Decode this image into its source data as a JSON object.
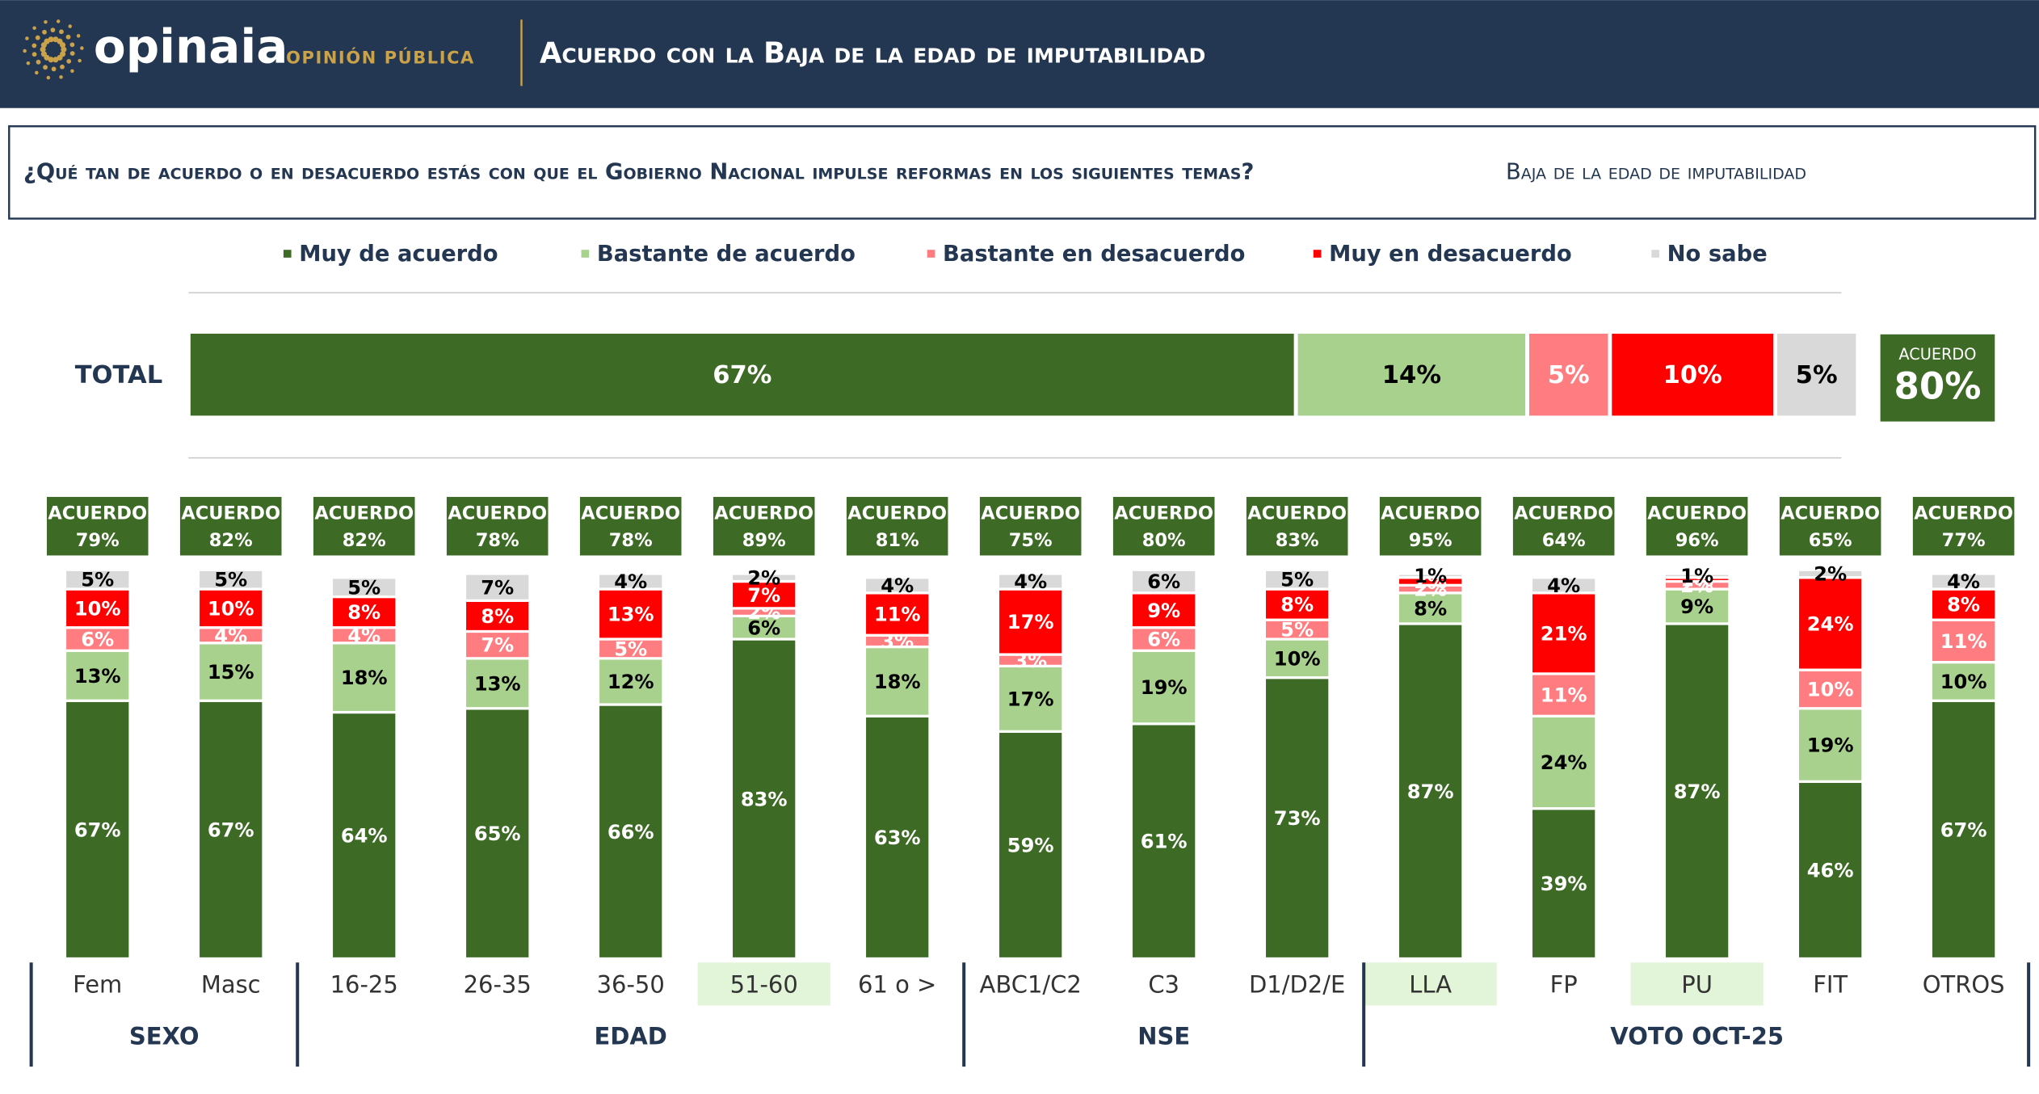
{
  "header": {
    "brand": "opinaia",
    "brand_sub": "OPINIÓN PÚBLICA",
    "title": "Acuerdo con la Baja de la edad de imputabilidad"
  },
  "question": {
    "text": "¿Qué tan de acuerdo o en desacuerdo estás con que el Gobierno Nacional impulse reformas en los siguientes temas?",
    "topic": "Baja de la edad de imputabilidad"
  },
  "chart_data": {
    "type": "stacked_bar",
    "categories": [
      "Fem",
      "Masc",
      "16-25",
      "26-35",
      "36-50",
      "51-60",
      "61 o >",
      "ABC1/C2",
      "C3",
      "D1/D2/E",
      "LLA",
      "FP",
      "PU",
      "FIT",
      "OTROS"
    ],
    "groups": [
      {
        "label": "SEXO",
        "size": 2
      },
      {
        "label": "EDAD",
        "size": 5
      },
      {
        "label": "NSE",
        "size": 3
      },
      {
        "label": "VOTO OCT-25",
        "size": 5
      }
    ],
    "ylim": [
      0,
      100
    ],
    "series": [
      {
        "name": "Muy de acuerdo",
        "color": "#3d6a25",
        "values": [
          67,
          67,
          64,
          65,
          66,
          83,
          63,
          59,
          61,
          73,
          87,
          39,
          87,
          46,
          67
        ],
        "value_labels": [
          "67%",
          "67%",
          "64%",
          "65%",
          "66%",
          "83%",
          "63%",
          "59%",
          "61%",
          "73%",
          "87%",
          "39%",
          "87%",
          "46%",
          "67%"
        ]
      },
      {
        "name": "Bastante de acuerdo",
        "color": "#a9d18e",
        "values": [
          13,
          15,
          18,
          13,
          12,
          6,
          18,
          17,
          19,
          10,
          8,
          24,
          9,
          19,
          10
        ],
        "value_labels": [
          "13%",
          "15%",
          "18%",
          "13%",
          "12%",
          "6%",
          "18%",
          "17%",
          "19%",
          "10%",
          "8%",
          "24%",
          "9%",
          "19%",
          "10%"
        ]
      },
      {
        "name": "Bastante en desacuerdo",
        "color": "#ff7c80",
        "values": [
          6,
          4,
          4,
          7,
          5,
          2,
          3,
          3,
          6,
          5,
          2,
          11,
          2,
          10,
          11
        ],
        "value_labels": [
          "6%",
          "4%",
          "4%",
          "7%",
          "5%",
          "2%",
          "3%",
          "3%",
          "6%",
          "5%",
          "2%",
          "11%",
          "2%",
          "10%",
          "11%"
        ]
      },
      {
        "name": "Muy en desacuerdo",
        "color": "#ff0000",
        "values": [
          10,
          10,
          8,
          8,
          13,
          7,
          11,
          17,
          9,
          8,
          2,
          21,
          1,
          24,
          8
        ],
        "value_labels": [
          "10%",
          "10%",
          "8%",
          "8%",
          "13%",
          "7%",
          "11%",
          "17%",
          "9%",
          "8%",
          "2%",
          "21%",
          "1%",
          "24%",
          "8%"
        ]
      },
      {
        "name": "No sabe",
        "color": "#d9d9d9",
        "values": [
          5,
          5,
          5,
          7,
          4,
          2,
          4,
          4,
          6,
          5,
          1,
          4,
          1,
          2,
          4
        ],
        "value_labels": [
          "5%",
          "5%",
          "5%",
          "7%",
          "4%",
          "2%",
          "4%",
          "4%",
          "6%",
          "5%",
          "1%",
          "4%",
          "1%",
          "2%",
          "4%"
        ]
      }
    ],
    "agreement": {
      "label": "ACUERDO",
      "values": [
        79,
        82,
        82,
        78,
        78,
        89,
        81,
        75,
        80,
        83,
        95,
        64,
        96,
        65,
        77
      ],
      "value_labels": [
        "79%",
        "82%",
        "82%",
        "78%",
        "78%",
        "89%",
        "81%",
        "75%",
        "80%",
        "83%",
        "95%",
        "64%",
        "96%",
        "65%",
        "77%"
      ]
    },
    "total": {
      "label": "TOTAL",
      "values": [
        67,
        14,
        5,
        10,
        5
      ],
      "value_labels": [
        "67%",
        "14%",
        "5%",
        "10%",
        "5%"
      ],
      "agreement": 80,
      "agreement_label": "80%"
    }
  }
}
